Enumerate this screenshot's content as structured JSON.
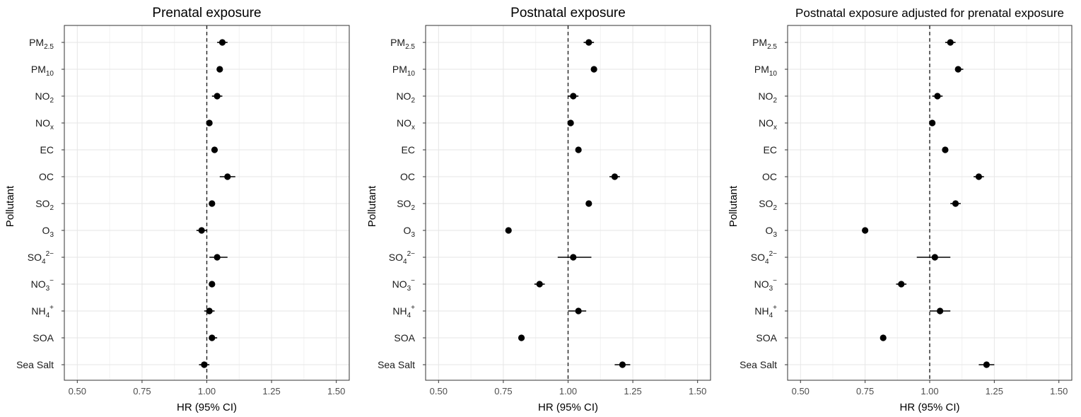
{
  "figure": {
    "xlabel": "HR (95% CI)",
    "ylabel": "Pollutant"
  },
  "pollutants": [
    {
      "base": "PM",
      "sub": "2.5",
      "sup": ""
    },
    {
      "base": "PM",
      "sub": "10",
      "sup": ""
    },
    {
      "base": "NO",
      "sub": "2",
      "sup": ""
    },
    {
      "base": "NO",
      "sub": "x",
      "sup": ""
    },
    {
      "base": "EC",
      "sub": "",
      "sup": ""
    },
    {
      "base": "OC",
      "sub": "",
      "sup": ""
    },
    {
      "base": "SO",
      "sub": "2",
      "sup": ""
    },
    {
      "base": "O",
      "sub": "3",
      "sup": ""
    },
    {
      "base": "SO",
      "sub": "4",
      "sup": "2−"
    },
    {
      "base": "NO",
      "sub": "3",
      "sup": "−"
    },
    {
      "base": "NH",
      "sub": "4",
      "sup": "+"
    },
    {
      "base": "SOA",
      "sub": "",
      "sup": ""
    },
    {
      "base": "Sea Salt",
      "sub": "",
      "sup": ""
    }
  ],
  "chart_data": [
    {
      "type": "scatter",
      "title": "Prenatal exposure",
      "xlabel": "HR (95% CI)",
      "ylabel": "Pollutant",
      "xlim": [
        0.45,
        1.55
      ],
      "xticks": [
        0.5,
        0.75,
        1.0,
        1.25,
        1.5
      ],
      "tick_labels": [
        "0.50",
        "0.75",
        "1.00",
        "1.25",
        "1.50"
      ],
      "reference_line": 1.0,
      "grid": true,
      "categories": [
        "PM2.5",
        "PM10",
        "NO2",
        "NOx",
        "EC",
        "OC",
        "SO2",
        "O3",
        "SO4 2−",
        "NO3 −",
        "NH4 +",
        "SOA",
        "Sea Salt"
      ],
      "hr": [
        1.06,
        1.05,
        1.04,
        1.01,
        1.03,
        1.08,
        1.02,
        0.98,
        1.04,
        1.02,
        1.01,
        1.02,
        0.99
      ],
      "lower": [
        1.04,
        1.04,
        1.02,
        1.0,
        1.02,
        1.05,
        1.01,
        0.96,
        1.01,
        1.01,
        0.99,
        1.01,
        0.97
      ],
      "upper": [
        1.08,
        1.06,
        1.06,
        1.02,
        1.04,
        1.11,
        1.03,
        1.0,
        1.08,
        1.03,
        1.03,
        1.04,
        1.01
      ]
    },
    {
      "type": "scatter",
      "title": "Postnatal exposure",
      "xlabel": "HR (95% CI)",
      "ylabel": "Pollutant",
      "xlim": [
        0.45,
        1.55
      ],
      "xticks": [
        0.5,
        0.75,
        1.0,
        1.25,
        1.5
      ],
      "tick_labels": [
        "0.50",
        "0.75",
        "1.00",
        "1.25",
        "1.50"
      ],
      "reference_line": 1.0,
      "grid": true,
      "categories": [
        "PM2.5",
        "PM10",
        "NO2",
        "NOx",
        "EC",
        "OC",
        "SO2",
        "O3",
        "SO4 2−",
        "NO3 −",
        "NH4 +",
        "SOA",
        "Sea Salt"
      ],
      "hr": [
        1.08,
        1.1,
        1.02,
        1.01,
        1.04,
        1.18,
        1.08,
        0.77,
        1.02,
        0.89,
        1.04,
        0.82,
        1.21
      ],
      "lower": [
        1.06,
        1.09,
        1.0,
        1.0,
        1.03,
        1.16,
        1.07,
        0.76,
        0.96,
        0.87,
        1.0,
        0.81,
        1.18
      ],
      "upper": [
        1.1,
        1.11,
        1.04,
        1.02,
        1.05,
        1.2,
        1.09,
        0.78,
        1.09,
        0.91,
        1.07,
        0.83,
        1.24
      ]
    },
    {
      "type": "scatter",
      "title": "Postnatal exposure adjusted for prenatal exposure",
      "xlabel": "HR (95% CI)",
      "ylabel": "Pollutant",
      "xlim": [
        0.45,
        1.55
      ],
      "xticks": [
        0.5,
        0.75,
        1.0,
        1.25,
        1.5
      ],
      "tick_labels": [
        "0.50",
        "0.75",
        "1.00",
        "1.25",
        "1.50"
      ],
      "reference_line": 1.0,
      "grid": true,
      "categories": [
        "PM2.5",
        "PM10",
        "NO2",
        "NOx",
        "EC",
        "OC",
        "SO2",
        "O3",
        "SO4 2−",
        "NO3 −",
        "NH4 +",
        "SOA",
        "Sea Salt"
      ],
      "hr": [
        1.08,
        1.11,
        1.03,
        1.01,
        1.06,
        1.19,
        1.1,
        0.75,
        1.02,
        0.89,
        1.04,
        0.82,
        1.22
      ],
      "lower": [
        1.06,
        1.1,
        1.01,
        1.0,
        1.05,
        1.17,
        1.08,
        0.74,
        0.95,
        0.87,
        1.0,
        0.81,
        1.19
      ],
      "upper": [
        1.1,
        1.13,
        1.05,
        1.02,
        1.07,
        1.21,
        1.12,
        0.76,
        1.08,
        0.91,
        1.08,
        0.83,
        1.25
      ]
    }
  ]
}
